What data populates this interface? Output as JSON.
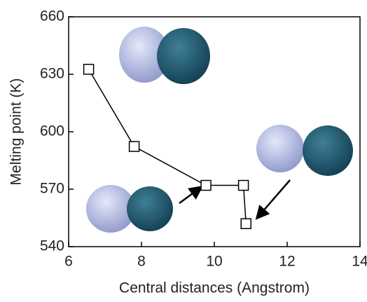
{
  "chart_data": {
    "type": "line",
    "x_label": "Central distances (Angstrom)",
    "y_label": "Melting point (K)",
    "series": [
      {
        "color": "#000000",
        "x": [
          6.55,
          7.8,
          9.77,
          10.8,
          10.87
        ],
        "values": [
          632.6,
          592.3,
          572,
          572,
          552
        ]
      }
    ],
    "xlim": [
      6,
      14
    ],
    "xticks": [
      6,
      8,
      10,
      12,
      14
    ],
    "ylim": [
      540,
      660
    ],
    "yticks": [
      540,
      570,
      600,
      630,
      660
    ],
    "grid": false
  }
}
